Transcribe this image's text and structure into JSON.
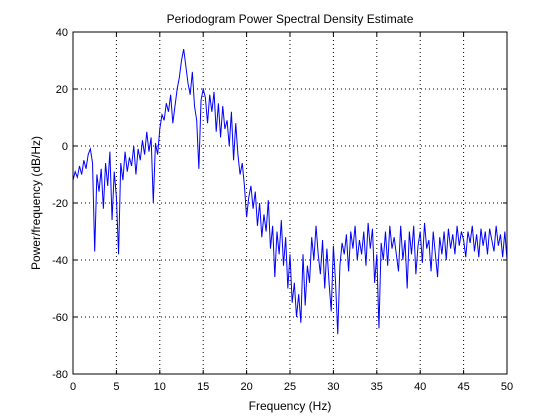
{
  "chart_data": {
    "type": "line",
    "title": "Periodogram Power Spectral Density Estimate",
    "xlabel": "Frequency (Hz)",
    "ylabel": "Power/frequency (dB/Hz)",
    "xlim": [
      0,
      50
    ],
    "ylim": [
      -80,
      40
    ],
    "xticks": [
      0,
      5,
      10,
      15,
      20,
      25,
      30,
      35,
      40,
      45,
      50
    ],
    "yticks": [
      -80,
      -60,
      -40,
      -20,
      0,
      20,
      40
    ],
    "xtick_labels": [
      "0",
      "5",
      "10",
      "15",
      "20",
      "25",
      "30",
      "35",
      "40",
      "45",
      "50"
    ],
    "ytick_labels": [
      "-80",
      "-60",
      "-40",
      "-20",
      "0",
      "20",
      "40"
    ],
    "grid": true,
    "grid_style": "dotted",
    "line_color": "#0000ff",
    "series": [
      {
        "x": [
          0,
          0.25,
          0.5,
          0.75,
          1,
          1.25,
          1.5,
          1.75,
          2,
          2.25,
          2.5,
          2.75,
          3,
          3.25,
          3.5,
          3.75,
          4,
          4.25,
          4.5,
          4.75,
          5,
          5.25,
          5.5,
          5.75,
          6,
          6.25,
          6.5,
          6.75,
          7,
          7.25,
          7.5,
          7.75,
          8,
          8.25,
          8.5,
          8.75,
          9,
          9.25,
          9.5,
          9.75,
          10,
          10.25,
          10.5,
          10.75,
          11,
          11.25,
          11.5,
          11.75,
          12,
          12.25,
          12.5,
          12.75,
          13,
          13.25,
          13.5,
          13.75,
          14,
          14.25,
          14.5,
          14.75,
          15,
          15.25,
          15.5,
          15.75,
          16,
          16.25,
          16.5,
          16.75,
          17,
          17.25,
          17.5,
          17.75,
          18,
          18.25,
          18.5,
          18.75,
          19,
          19.25,
          19.5,
          19.75,
          20,
          20.25,
          20.5,
          20.75,
          21,
          21.25,
          21.5,
          21.75,
          22,
          22.25,
          22.5,
          22.75,
          23,
          23.25,
          23.5,
          23.75,
          24,
          24.25,
          24.5,
          24.75,
          25,
          25.25,
          25.5,
          25.75,
          26,
          26.25,
          26.5,
          26.75,
          27,
          27.25,
          27.5,
          27.75,
          28,
          28.25,
          28.5,
          28.75,
          29,
          29.25,
          29.5,
          29.75,
          30,
          30.25,
          30.5,
          30.75,
          31,
          31.25,
          31.5,
          31.75,
          32,
          32.25,
          32.5,
          32.75,
          33,
          33.25,
          33.5,
          33.75,
          34,
          34.25,
          34.5,
          34.75,
          35,
          35.25,
          35.5,
          35.75,
          36,
          36.25,
          36.5,
          36.75,
          37,
          37.25,
          37.5,
          37.75,
          38,
          38.25,
          38.5,
          38.75,
          39,
          39.25,
          39.5,
          39.75,
          40,
          40.25,
          40.5,
          40.75,
          41,
          41.25,
          41.5,
          41.75,
          42,
          42.25,
          42.5,
          42.75,
          43,
          43.25,
          43.5,
          43.75,
          44,
          44.25,
          44.5,
          44.75,
          45,
          45.25,
          45.5,
          45.75,
          46,
          46.25,
          46.5,
          46.75,
          47,
          47.25,
          47.5,
          47.75,
          48,
          48.25,
          48.5,
          48.75,
          49,
          49.25,
          49.5,
          49.75,
          50
        ],
        "y": [
          -12,
          -9,
          -11,
          -7,
          -10,
          -5,
          -8,
          -3,
          -1,
          -6,
          -37,
          -10,
          -16,
          -8,
          -22,
          -6,
          -14,
          -2,
          -26,
          -9,
          -18,
          -38,
          -6,
          -12,
          -2,
          -9,
          -4,
          -7,
          0,
          -10,
          -1,
          -5,
          2,
          -3,
          5,
          -2,
          3,
          -20,
          1,
          -3,
          6,
          11,
          9,
          15,
          12,
          18,
          8,
          14,
          20,
          24,
          30,
          34,
          28,
          22,
          18,
          26,
          14,
          9,
          -8,
          16,
          20,
          17,
          8,
          18,
          12,
          19,
          5,
          15,
          3,
          14,
          6,
          9,
          0,
          12,
          -5,
          8,
          -3,
          -10,
          -6,
          -14,
          -25,
          -18,
          -14,
          -22,
          -16,
          -28,
          -20,
          -32,
          -24,
          -30,
          -19,
          -36,
          -28,
          -46,
          -30,
          -38,
          -26,
          -42,
          -32,
          -50,
          -38,
          -55,
          -48,
          -60,
          -52,
          -62,
          -38,
          -56,
          -42,
          -48,
          -32,
          -40,
          -28,
          -38,
          -45,
          -33,
          -50,
          -36,
          -48,
          -58,
          -35,
          -48,
          -66,
          -42,
          -34,
          -38,
          -31,
          -44,
          -30,
          -36,
          -28,
          -40,
          -33,
          -38,
          -30,
          -42,
          -27,
          -36,
          -29,
          -48,
          -38,
          -64,
          -34,
          -40,
          -30,
          -42,
          -28,
          -36,
          -32,
          -38,
          -44,
          -28,
          -40,
          -33,
          -50,
          -30,
          -38,
          -28,
          -45,
          -35,
          -30,
          -41,
          -27,
          -36,
          -33,
          -44,
          -30,
          -38,
          -46,
          -32,
          -38,
          -30,
          -40,
          -29,
          -36,
          -31,
          -38,
          -28,
          -35,
          -30,
          -33,
          -39,
          -30,
          -34,
          -28,
          -37,
          -31,
          -39,
          -29,
          -35,
          -30,
          -38,
          -29,
          -33,
          -37,
          -28,
          -35,
          -31,
          -39,
          -30,
          -40
        ]
      }
    ]
  }
}
